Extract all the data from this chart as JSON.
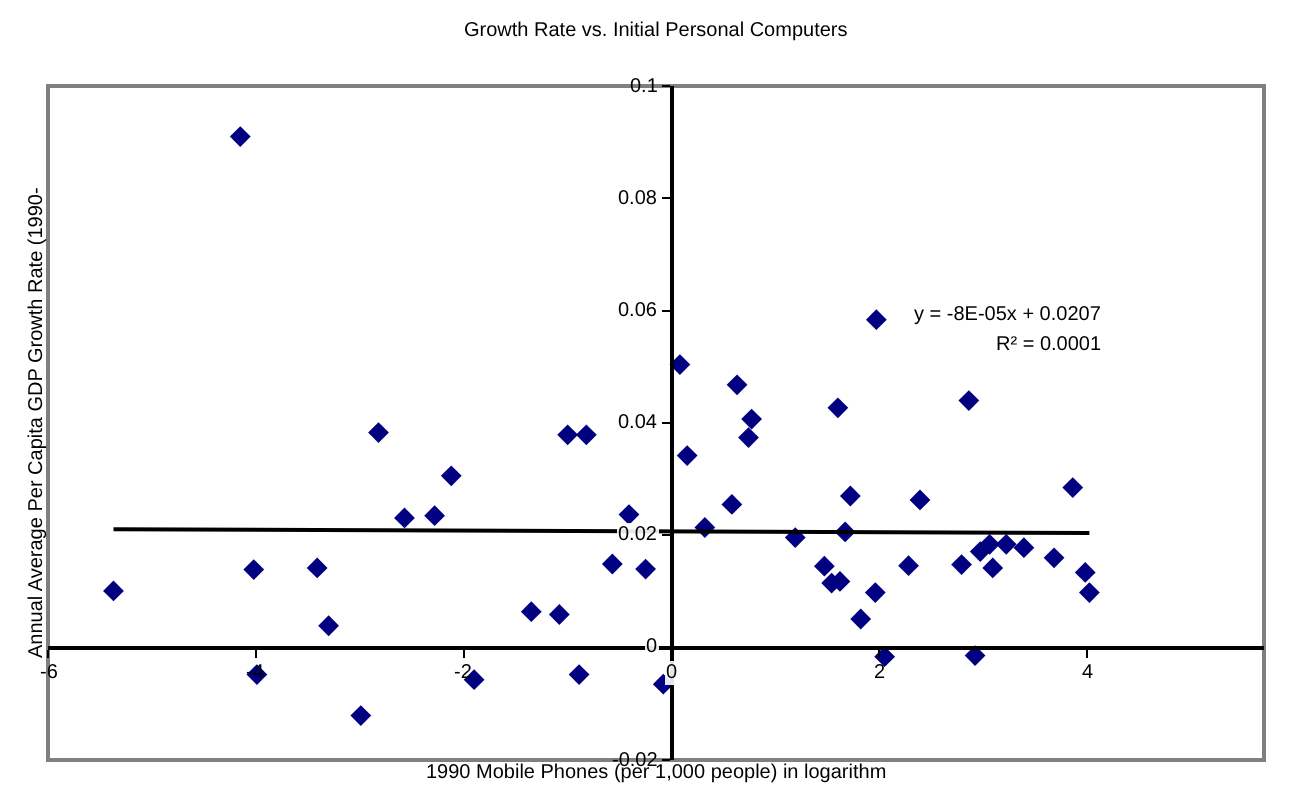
{
  "chart_data": {
    "type": "scatter",
    "title": "Growth Rate vs. Initial Personal Computers",
    "xlabel": "1990 Mobile Phones (per 1,000 people) in logarithm",
    "ylabel": "Annual Average Per Capita GDP Growth Rate (1990-",
    "annotations": [
      "y = -8E-05x + 0.0207",
      "R² = 0.0001"
    ],
    "xlim": [
      -6,
      5.7
    ],
    "xticks": [
      -6,
      -4,
      -2,
      0,
      2,
      4
    ],
    "ylim": [
      -0.02,
      0.1
    ],
    "yticks": [
      -0.02,
      0,
      0.02,
      0.04,
      0.06,
      0.08,
      0.1
    ],
    "grid": false,
    "marker": "diamond",
    "series": [
      {
        "color": "#000080",
        "x": [
          -4.15,
          -5.37,
          -4.02,
          -3.99,
          -3.41,
          -3.3,
          -2.99,
          -2.82,
          -2.57,
          -2.28,
          -2.12,
          -1.9,
          -1.35,
          -1.08,
          -1.0,
          -0.82,
          -0.89,
          -0.57,
          -0.41,
          -0.25,
          -0.08,
          0.08,
          0.15,
          0.32,
          0.58,
          0.63,
          0.74,
          0.77,
          1.19,
          1.47,
          1.54,
          1.62,
          1.6,
          1.67,
          1.72,
          1.82,
          1.96,
          1.97,
          2.05,
          2.28,
          2.39,
          2.79,
          2.92,
          2.86,
          2.97,
          3.06,
          3.09,
          3.22,
          3.39,
          3.68,
          3.86,
          3.98,
          4.02
        ],
        "values": [
          0.091,
          0.0101,
          0.0139,
          -0.0048,
          0.0142,
          0.0039,
          -0.0121,
          0.0383,
          0.0231,
          0.0235,
          0.0306,
          -0.0057,
          0.0064,
          0.0059,
          0.0379,
          0.0379,
          -0.0048,
          0.0149,
          0.0237,
          0.014,
          -0.0065,
          0.0504,
          0.0342,
          0.0214,
          0.0255,
          0.0468,
          0.0374,
          0.0407,
          0.0196,
          0.0145,
          0.0115,
          0.0118,
          0.0427,
          0.0206,
          0.027,
          0.0051,
          0.0098,
          0.0584,
          -0.0016,
          0.0146,
          0.0263,
          0.0148,
          -0.0014,
          0.044,
          0.0171,
          0.0184,
          0.0142,
          0.0184,
          0.0178,
          0.016,
          0.0285,
          0.0134,
          0.0098
        ]
      },
      {
        "type": "line",
        "color": "#000000",
        "marker": "none",
        "line_style": "solid",
        "x": [
          -5.37,
          4.02
        ],
        "values": [
          0.0211,
          0.0204
        ]
      }
    ]
  }
}
